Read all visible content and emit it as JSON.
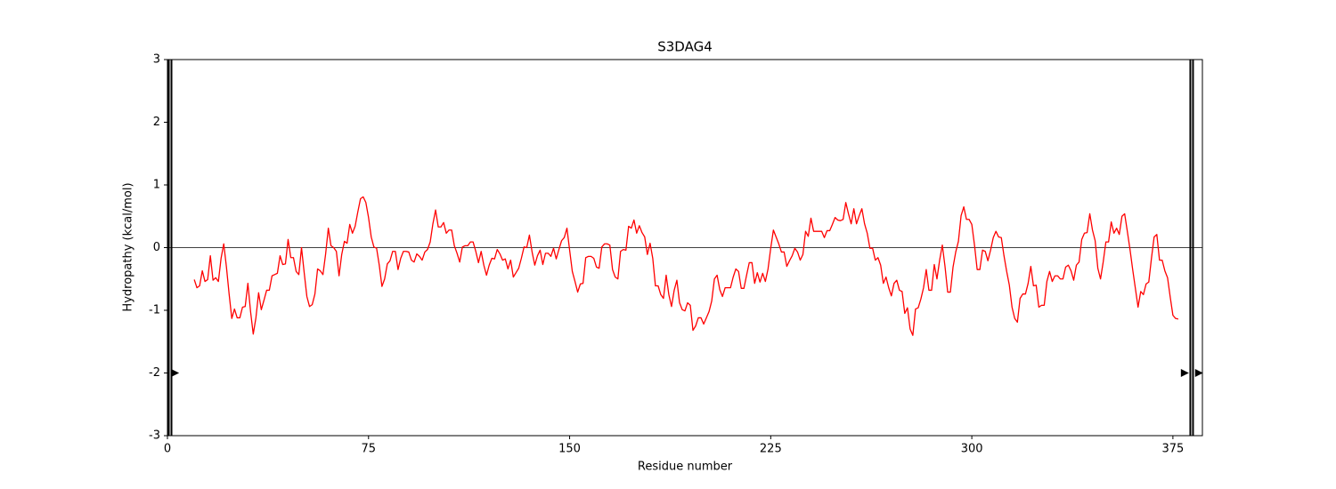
{
  "chart_data": {
    "type": "line",
    "title": "S3DAG4",
    "x_label": "Residue number",
    "y_label": "Hydropathy (kcal/mol)",
    "xlim": [
      0,
      386
    ],
    "ylim": [
      -3,
      3
    ],
    "xticks": [
      0,
      75,
      150,
      225,
      300,
      375
    ],
    "yticks": [
      -3,
      -2,
      -1,
      0,
      1,
      2,
      3
    ],
    "reference_line_y": 0,
    "vlines": [
      0.5,
      1.5,
      381.5,
      382.5
    ],
    "markers": {
      "x": [
        2.7,
        379.3,
        384.6
      ],
      "y": [
        -2,
        -2,
        -2
      ],
      "color": "#000000"
    },
    "x": [
      10,
      11,
      12,
      13,
      14,
      15,
      16,
      17,
      18,
      19,
      20,
      21,
      22,
      23,
      24,
      25,
      26,
      27,
      28,
      29,
      30,
      31,
      32,
      33,
      34,
      35,
      36,
      37,
      38,
      39,
      40,
      41,
      42,
      43,
      44,
      45,
      46,
      47,
      48,
      49,
      50,
      51,
      52,
      53,
      54,
      55,
      56,
      57,
      58,
      59,
      60,
      61,
      62,
      63,
      64,
      65,
      66,
      67,
      68,
      69,
      70,
      71,
      72,
      73,
      74,
      75,
      76,
      77,
      78,
      79,
      80,
      81,
      82,
      83,
      84,
      85,
      86,
      87,
      88,
      89,
      90,
      91,
      92,
      93,
      94,
      95,
      96,
      97,
      98,
      99,
      100,
      101,
      102,
      103,
      104,
      105,
      106,
      107,
      108,
      109,
      110,
      111,
      112,
      113,
      114,
      115,
      116,
      117,
      118,
      119,
      120,
      121,
      122,
      123,
      124,
      125,
      126,
      127,
      128,
      129,
      130,
      131,
      132,
      133,
      134,
      135,
      136,
      137,
      138,
      139,
      140,
      141,
      142,
      143,
      144,
      145,
      146,
      147,
      148,
      149,
      150,
      151,
      152,
      153,
      154,
      155,
      156,
      157,
      158,
      159,
      160,
      161,
      162,
      163,
      164,
      165,
      166,
      167,
      168,
      169,
      170,
      171,
      172,
      173,
      174,
      175,
      176,
      177,
      178,
      179,
      180,
      181,
      182,
      183,
      184,
      185,
      186,
      187,
      188,
      189,
      190,
      191,
      192,
      193,
      194,
      195,
      196,
      197,
      198,
      199,
      200,
      201,
      202,
      203,
      204,
      205,
      206,
      207,
      208,
      209,
      210,
      211,
      212,
      213,
      214,
      215,
      216,
      217,
      218,
      219,
      220,
      221,
      222,
      223,
      224,
      225,
      226,
      227,
      228,
      229,
      230,
      231,
      232,
      233,
      234,
      235,
      236,
      237,
      238,
      239,
      240,
      241,
      242,
      243,
      244,
      245,
      246,
      247,
      248,
      249,
      250,
      251,
      252,
      253,
      254,
      255,
      256,
      257,
      258,
      259,
      260,
      261,
      262,
      263,
      264,
      265,
      266,
      267,
      268,
      269,
      270,
      271,
      272,
      273,
      274,
      275,
      276,
      277,
      278,
      279,
      280,
      281,
      282,
      283,
      284,
      285,
      286,
      287,
      288,
      289,
      290,
      291,
      292,
      293,
      294,
      295,
      296,
      297,
      298,
      299,
      300,
      301,
      302,
      303,
      304,
      305,
      306,
      307,
      308,
      309,
      310,
      311,
      312,
      313,
      314,
      315,
      316,
      317,
      318,
      319,
      320,
      321,
      322,
      323,
      324,
      325,
      326,
      327,
      328,
      329,
      330,
      331,
      332,
      333,
      334,
      335,
      336,
      337,
      338,
      339,
      340,
      341,
      342,
      343,
      344,
      345,
      346,
      347,
      348,
      349,
      350,
      351,
      352,
      353,
      354,
      355,
      356,
      357,
      358,
      359,
      360,
      361,
      362,
      363,
      364,
      365,
      366,
      367,
      368,
      369,
      370,
      371,
      372,
      373,
      374,
      375,
      376,
      377
    ],
    "series": [
      {
        "color": "#ff0000",
        "values": [
          -0.51,
          -0.64,
          -0.61,
          -0.37,
          -0.54,
          -0.51,
          -0.13,
          -0.52,
          -0.48,
          -0.54,
          -0.17,
          0.06,
          -0.31,
          -0.74,
          -1.13,
          -0.98,
          -1.12,
          -1.12,
          -0.95,
          -0.94,
          -0.57,
          -1.02,
          -1.38,
          -1.12,
          -0.72,
          -0.99,
          -0.84,
          -0.68,
          -0.68,
          -0.45,
          -0.43,
          -0.41,
          -0.13,
          -0.27,
          -0.26,
          0.13,
          -0.16,
          -0.16,
          -0.38,
          -0.43,
          0.0,
          -0.4,
          -0.78,
          -0.94,
          -0.91,
          -0.74,
          -0.34,
          -0.37,
          -0.43,
          -0.1,
          0.31,
          0.03,
          0.0,
          -0.06,
          -0.45,
          -0.11,
          0.1,
          0.07,
          0.37,
          0.23,
          0.34,
          0.57,
          0.78,
          0.81,
          0.72,
          0.48,
          0.17,
          0.01,
          -0.01,
          -0.28,
          -0.62,
          -0.5,
          -0.26,
          -0.21,
          -0.06,
          -0.06,
          -0.35,
          -0.17,
          -0.06,
          -0.06,
          -0.07,
          -0.2,
          -0.23,
          -0.1,
          -0.14,
          -0.2,
          -0.07,
          -0.03,
          0.09,
          0.38,
          0.6,
          0.33,
          0.33,
          0.4,
          0.23,
          0.28,
          0.28,
          0.03,
          -0.09,
          -0.23,
          0.01,
          0.03,
          0.03,
          0.09,
          0.09,
          -0.06,
          -0.24,
          -0.06,
          -0.28,
          -0.44,
          -0.28,
          -0.17,
          -0.18,
          -0.03,
          -0.1,
          -0.2,
          -0.18,
          -0.34,
          -0.2,
          -0.47,
          -0.4,
          -0.33,
          -0.17,
          0.01,
          0,
          0.2,
          -0.07,
          -0.28,
          -0.13,
          -0.04,
          -0.27,
          -0.09,
          -0.09,
          -0.14,
          -0.01,
          -0.18,
          -0.03,
          0.11,
          0.16,
          0.31,
          -0.04,
          -0.38,
          -0.54,
          -0.71,
          -0.58,
          -0.57,
          -0.16,
          -0.14,
          -0.14,
          -0.17,
          -0.31,
          -0.33,
          0.01,
          0.06,
          0.06,
          0.04,
          -0.35,
          -0.47,
          -0.5,
          -0.06,
          -0.03,
          -0.04,
          0.34,
          0.31,
          0.44,
          0.23,
          0.35,
          0.24,
          0.17,
          -0.11,
          0.07,
          -0.17,
          -0.61,
          -0.61,
          -0.75,
          -0.81,
          -0.44,
          -0.75,
          -0.94,
          -0.68,
          -0.52,
          -0.88,
          -0.99,
          -1.01,
          -0.88,
          -0.92,
          -1.32,
          -1.25,
          -1.12,
          -1.12,
          -1.22,
          -1.12,
          -1.02,
          -0.85,
          -0.5,
          -0.44,
          -0.67,
          -0.78,
          -0.64,
          -0.64,
          -0.64,
          -0.47,
          -0.34,
          -0.38,
          -0.65,
          -0.65,
          -0.44,
          -0.24,
          -0.24,
          -0.57,
          -0.4,
          -0.55,
          -0.41,
          -0.54,
          -0.34,
          -0.01,
          0.28,
          0.17,
          0.06,
          -0.07,
          -0.07,
          -0.3,
          -0.21,
          -0.13,
          -0.01,
          -0.07,
          -0.2,
          -0.11,
          0.26,
          0.18,
          0.47,
          0.26,
          0.26,
          0.26,
          0.26,
          0.16,
          0.27,
          0.27,
          0.37,
          0.48,
          0.44,
          0.43,
          0.45,
          0.72,
          0.54,
          0.38,
          0.62,
          0.38,
          0.51,
          0.62,
          0.38,
          0.23,
          -0.01,
          -0.01,
          -0.2,
          -0.16,
          -0.28,
          -0.57,
          -0.47,
          -0.64,
          -0.77,
          -0.57,
          -0.52,
          -0.68,
          -0.7,
          -1.05,
          -0.96,
          -1.3,
          -1.4,
          -0.98,
          -0.96,
          -0.82,
          -0.64,
          -0.35,
          -0.68,
          -0.68,
          -0.27,
          -0.5,
          -0.2,
          0.04,
          -0.3,
          -0.71,
          -0.71,
          -0.31,
          -0.07,
          0.1,
          0.51,
          0.65,
          0.45,
          0.45,
          0.37,
          0.04,
          -0.35,
          -0.35,
          -0.04,
          -0.06,
          -0.21,
          -0.04,
          0.16,
          0.26,
          0.17,
          0.16,
          -0.13,
          -0.38,
          -0.6,
          -0.95,
          -1.13,
          -1.19,
          -0.81,
          -0.74,
          -0.74,
          -0.57,
          -0.3,
          -0.61,
          -0.6,
          -0.95,
          -0.92,
          -0.92,
          -0.54,
          -0.38,
          -0.54,
          -0.45,
          -0.45,
          -0.5,
          -0.5,
          -0.31,
          -0.28,
          -0.37,
          -0.52,
          -0.28,
          -0.23,
          0.13,
          0.23,
          0.24,
          0.54,
          0.28,
          0.11,
          -0.33,
          -0.5,
          -0.23,
          0.09,
          0.09,
          0.41,
          0.23,
          0.31,
          0.21,
          0.5,
          0.54,
          0.26,
          -0.03,
          -0.35,
          -0.65,
          -0.95,
          -0.7,
          -0.75,
          -0.58,
          -0.55,
          -0.17,
          0.17,
          0.21,
          -0.2,
          -0.2,
          -0.37,
          -0.48,
          -0.79,
          -1.08,
          -1.13,
          -1.14
        ]
      }
    ]
  }
}
